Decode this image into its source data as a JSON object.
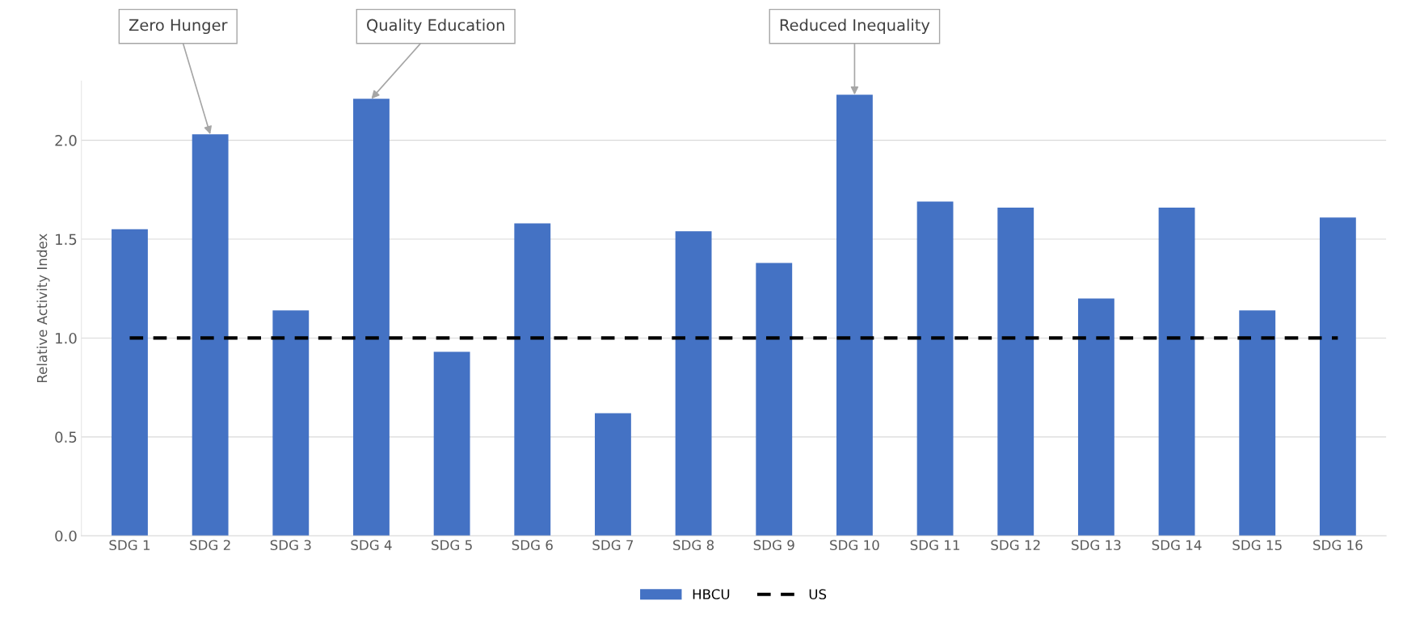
{
  "chart_data": {
    "type": "bar",
    "ylabel": "Relative Activity Index",
    "categories": [
      "SDG 1",
      "SDG 2",
      "SDG 3",
      "SDG 4",
      "SDG 5",
      "SDG 6",
      "SDG 7",
      "SDG 8",
      "SDG 9",
      "SDG 10",
      "SDG 11",
      "SDG 12",
      "SDG 13",
      "SDG 14",
      "SDG 15",
      "SDG 16"
    ],
    "series": [
      {
        "name": "HBCU",
        "color": "#4472c4",
        "values": [
          1.55,
          2.03,
          1.14,
          2.21,
          0.93,
          1.58,
          0.62,
          1.54,
          1.38,
          2.23,
          1.69,
          1.66,
          1.2,
          1.66,
          1.14,
          1.61
        ]
      },
      {
        "name": "US",
        "type": "line",
        "color": "#000000",
        "line_style": "dashed",
        "values": [
          1,
          1,
          1,
          1,
          1,
          1,
          1,
          1,
          1,
          1,
          1,
          1,
          1,
          1,
          1,
          1
        ]
      }
    ],
    "ylim": [
      0,
      2.3
    ],
    "yticks": [
      {
        "value": 0,
        "label": "0.0"
      },
      {
        "value": 0.5,
        "label": "0.5"
      },
      {
        "value": 1,
        "label": "1.0"
      },
      {
        "value": 1.5,
        "label": "1.5"
      },
      {
        "value": 2,
        "label": "2.0"
      }
    ],
    "grid": "y",
    "legend": "bottom",
    "annotations": [
      {
        "text": "Zero Hunger",
        "x": "SDG 2",
        "y": 2.03
      },
      {
        "text": "Quality Education",
        "x": "SDG 4",
        "y": 2.21
      },
      {
        "text": "Reduced Inequality",
        "x": "SDG 10",
        "y": 2.23
      }
    ]
  }
}
